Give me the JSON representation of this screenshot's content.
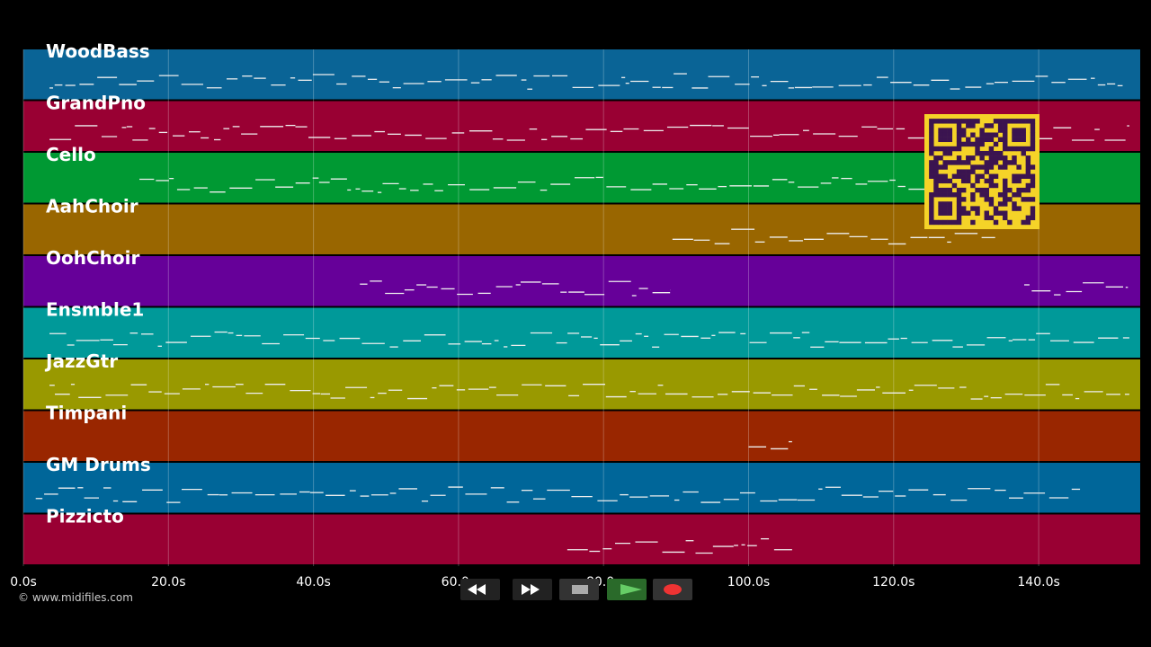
{
  "tracks": [
    {
      "name": "WoodBass",
      "color": "#0a6496",
      "note_ranges": [
        [
          3.6,
          152
        ]
      ]
    },
    {
      "name": "GrandPno",
      "color": "#990033",
      "note_ranges": [
        [
          3.6,
          152.5
        ]
      ]
    },
    {
      "name": "Cello",
      "color": "#009933",
      "note_ranges": [
        [
          16,
          124.6
        ]
      ]
    },
    {
      "name": "AahChoir",
      "color": "#996600",
      "note_ranges": [
        [
          89.5,
          134
        ]
      ]
    },
    {
      "name": "OohChoir",
      "color": "#660099",
      "note_ranges": [
        [
          46.4,
          89.2
        ],
        [
          138,
          152.3
        ]
      ]
    },
    {
      "name": "Ensmble1",
      "color": "#009999",
      "note_ranges": [
        [
          3.6,
          152.5
        ]
      ]
    },
    {
      "name": "JazzGtr",
      "color": "#999900",
      "note_ranges": [
        [
          3.6,
          152.5
        ]
      ]
    },
    {
      "name": "Timpani",
      "color": "#992600",
      "note_ranges": [
        [
          100,
          106
        ]
      ]
    },
    {
      "name": "GM Drums",
      "color": "#006699",
      "note_ranges": [
        [
          1.7,
          145.7
        ]
      ]
    },
    {
      "name": "Pizzicto",
      "color": "#990033",
      "note_ranges": [
        [
          75,
          106
        ]
      ]
    }
  ],
  "timeline": {
    "xlim": [
      0,
      154
    ],
    "xticks": [
      {
        "value": 0,
        "label": "0.0s"
      },
      {
        "value": 20,
        "label": "20.0s"
      },
      {
        "value": 40,
        "label": "40.0s"
      },
      {
        "value": 60,
        "label": "60.0s"
      },
      {
        "value": 80,
        "label": "80.0s"
      },
      {
        "value": 100,
        "label": "100.0s"
      },
      {
        "value": 120,
        "label": "120.0s"
      },
      {
        "value": 140,
        "label": "140.0s"
      }
    ]
  },
  "credit": "© www.midifiles.com"
}
